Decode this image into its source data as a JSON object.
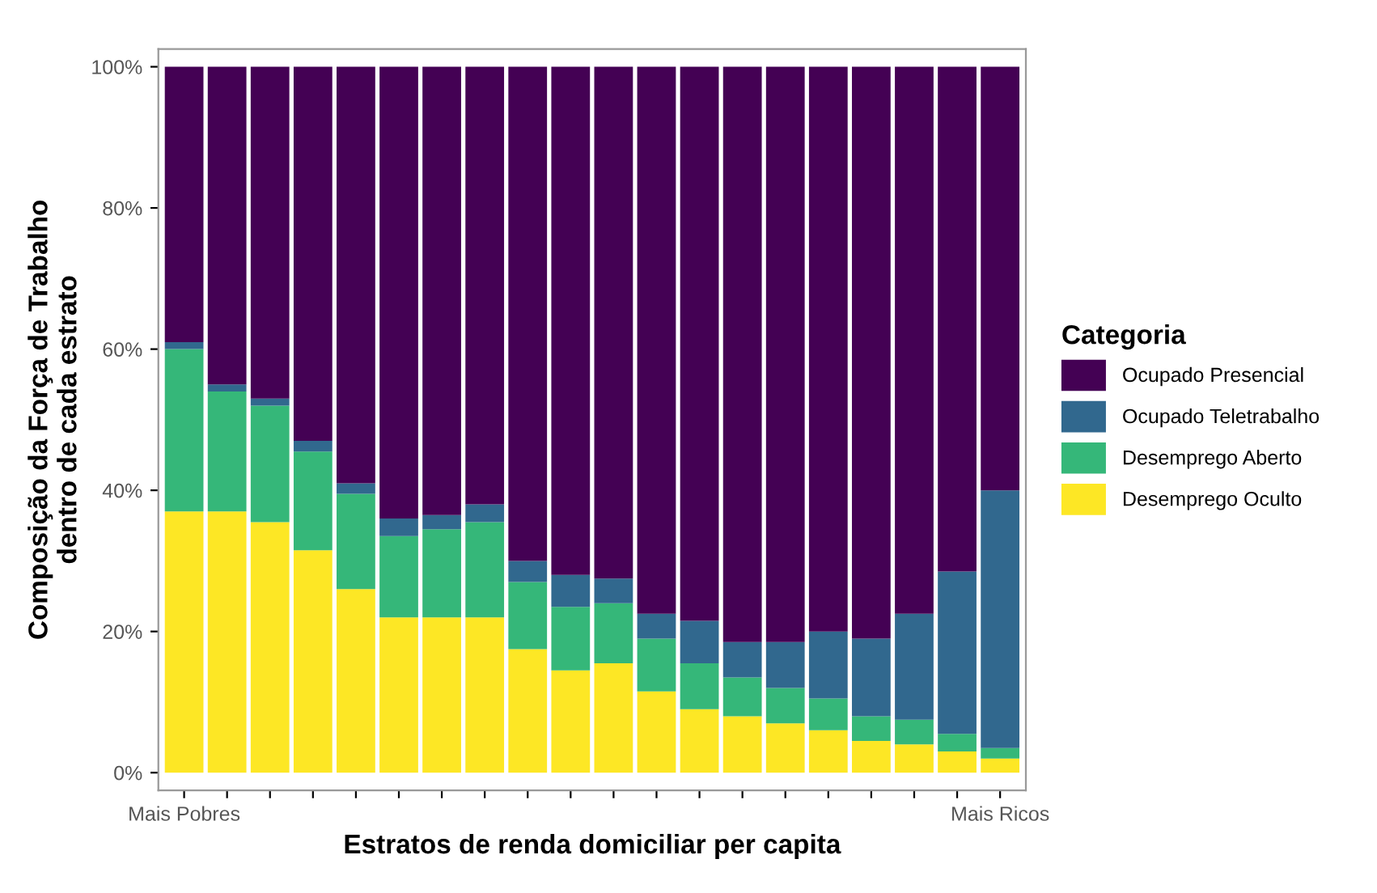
{
  "chart_data": {
    "type": "bar",
    "stacked": true,
    "xlabel": "Estratos de renda domiciliar per capita",
    "ylabel": "Composição da Força de Trabalho\ndentro de cada estrato",
    "legend_title": "Categoria",
    "legend": "right",
    "grid": false,
    "categories": [
      "Mais Pobres",
      null,
      null,
      null,
      null,
      null,
      null,
      null,
      null,
      null,
      null,
      null,
      null,
      null,
      null,
      null,
      null,
      null,
      null,
      "Mais Ricos"
    ],
    "ylim": [
      -2.5,
      102.5
    ],
    "yticks": [
      {
        "value": 0,
        "label": "0%"
      },
      {
        "value": 20,
        "label": "20%"
      },
      {
        "value": 40,
        "label": "40%"
      },
      {
        "value": 60,
        "label": "60%"
      },
      {
        "value": 80,
        "label": "80%"
      },
      {
        "value": 100,
        "label": "100%"
      }
    ],
    "series": [
      {
        "name": "Desemprego Oculto",
        "color": "#fde725",
        "values": [
          37,
          37,
          35.5,
          31.5,
          26,
          22,
          22,
          22,
          17.5,
          14.5,
          15.5,
          11.5,
          9,
          8,
          7,
          6,
          4.5,
          4,
          3,
          2
        ]
      },
      {
        "name": "Desemprego Aberto",
        "color": "#35b779",
        "values": [
          23,
          17,
          16.5,
          14,
          13.5,
          11.5,
          12.5,
          13.5,
          9.5,
          9,
          8.5,
          7.5,
          6.5,
          5.5,
          5,
          4.5,
          3.5,
          3.5,
          2.5,
          1.5
        ]
      },
      {
        "name": "Ocupado Teletrabalho",
        "color": "#31688e",
        "values": [
          1,
          1,
          1,
          1.5,
          1.5,
          2.5,
          2,
          2.5,
          3,
          4.5,
          3.5,
          3.5,
          6,
          5,
          6.5,
          9.5,
          11,
          15,
          23,
          36.5
        ]
      },
      {
        "name": "Ocupado Presencial",
        "color": "#440154",
        "values": [
          39,
          45,
          47,
          53,
          59,
          64,
          63.5,
          62,
          70,
          72,
          72.5,
          77.5,
          78.5,
          81.5,
          81.5,
          80,
          81,
          77.5,
          71.5,
          60
        ]
      }
    ]
  }
}
